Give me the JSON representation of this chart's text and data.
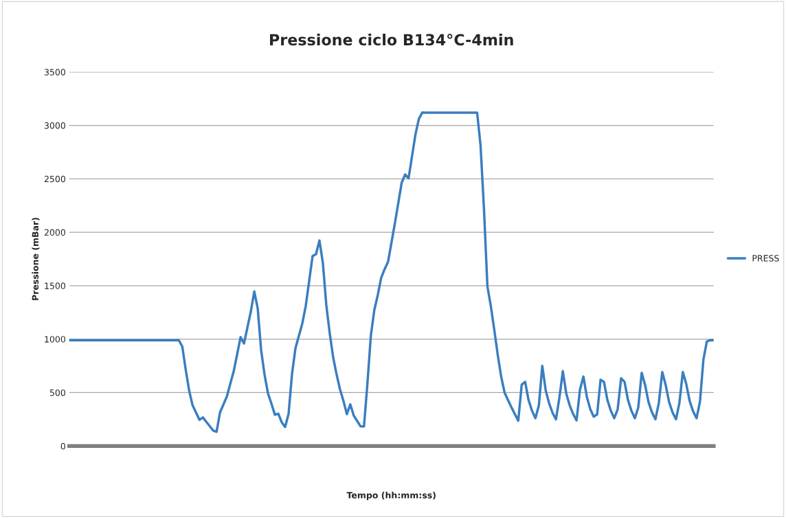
{
  "chart_data": {
    "type": "line",
    "title": "Pressione ciclo B134°C-4min",
    "xlabel": "Tempo (hh:mm:ss)",
    "ylabel": "Pressione (mBar)",
    "categories": [
      null,
      null,
      null,
      null,
      null,
      null,
      null,
      null,
      null,
      null,
      null,
      null,
      null,
      null,
      null,
      null,
      null,
      null,
      null,
      null,
      null,
      null,
      null,
      null,
      null,
      null,
      null,
      null,
      null,
      null,
      null,
      null,
      null,
      null,
      null,
      null,
      null,
      null,
      null,
      null,
      null,
      null,
      null,
      null,
      null,
      null,
      null,
      null,
      null,
      null,
      null,
      null,
      null,
      null,
      null,
      null,
      null,
      null,
      null,
      null,
      null,
      null,
      null,
      null,
      null,
      null,
      null,
      null,
      null,
      null,
      null,
      null,
      null,
      null,
      null,
      null,
      null,
      null,
      null,
      null,
      null,
      null,
      null,
      null,
      null,
      null,
      null,
      null,
      null,
      null,
      null,
      null,
      null,
      null,
      null,
      null,
      null,
      null,
      null,
      null,
      null,
      null,
      null,
      null,
      null,
      null,
      null,
      null,
      null,
      null,
      null,
      null,
      null,
      null,
      null,
      null,
      null,
      null,
      null,
      null,
      null,
      null,
      null,
      null,
      null,
      null,
      null,
      null,
      null,
      null,
      null,
      null,
      null,
      null,
      null,
      null,
      null,
      null,
      null,
      null,
      null,
      null,
      null,
      null,
      null,
      null,
      null,
      null,
      null,
      null,
      null,
      null,
      null,
      null,
      null,
      null,
      null,
      null,
      null,
      null,
      null,
      null,
      null,
      null,
      null,
      null,
      null,
      null,
      null,
      null,
      null,
      null,
      null,
      null,
      null,
      null,
      null,
      null,
      null,
      null,
      null,
      null,
      null,
      null,
      null,
      null,
      null,
      null,
      null
    ],
    "series": [
      {
        "name": "PRESS",
        "color": "#3a7ebf",
        "values": [
          990,
          990,
          990,
          990,
          990,
          990,
          990,
          990,
          990,
          990,
          990,
          990,
          990,
          990,
          990,
          990,
          990,
          990,
          990,
          990,
          990,
          990,
          990,
          990,
          990,
          990,
          990,
          990,
          990,
          990,
          990,
          990,
          990,
          930,
          713,
          518,
          380,
          313,
          245,
          267,
          226,
          186,
          145,
          133,
          315,
          389,
          463,
          582,
          700,
          859,
          1018,
          960,
          1110,
          1260,
          1446,
          1286,
          895,
          666,
          491,
          397,
          293,
          302,
          222,
          178,
          301,
          673,
          914,
          1030,
          1146,
          1309,
          1543,
          1777,
          1795,
          1923,
          1714,
          1321,
          1055,
          831,
          670,
          530,
          423,
          298,
          390,
          285,
          234,
          184,
          183,
          585,
          1033,
          1271,
          1410,
          1573,
          1654,
          1722,
          1900,
          2083,
          2274,
          2465,
          2541,
          2505,
          2710,
          2914,
          3061,
          3121,
          3120,
          3120,
          3120,
          3120,
          3120,
          3120,
          3120,
          3120,
          3120,
          3120,
          3120,
          3120,
          3120,
          3120,
          3120,
          3120,
          2812,
          2214,
          1493,
          1308,
          1088,
          855,
          651,
          500,
          431,
          362,
          298,
          237,
          575,
          600,
          430,
          330,
          260,
          379,
          750,
          520,
          400,
          310,
          250,
          453,
          700,
          490,
          380,
          300,
          240,
          527,
          650,
          460,
          345,
          275,
          295,
          620,
          600,
          430,
          330,
          260,
          345,
          634,
          600,
          430,
          330,
          260,
          360,
          685,
          570,
          410,
          315,
          250,
          403,
          692,
          570,
          410,
          315,
          250,
          403,
          692,
          580,
          420,
          325,
          260,
          415,
          808,
          978,
          990,
          990
        ]
      }
    ],
    "ylim": [
      0,
      3500
    ],
    "yticks": [
      0,
      500,
      1000,
      1500,
      2000,
      2500,
      3000,
      3500
    ],
    "grid": "y",
    "legend": "right",
    "tick_labels": "y",
    "marker": "none",
    "line_style": "solid"
  }
}
